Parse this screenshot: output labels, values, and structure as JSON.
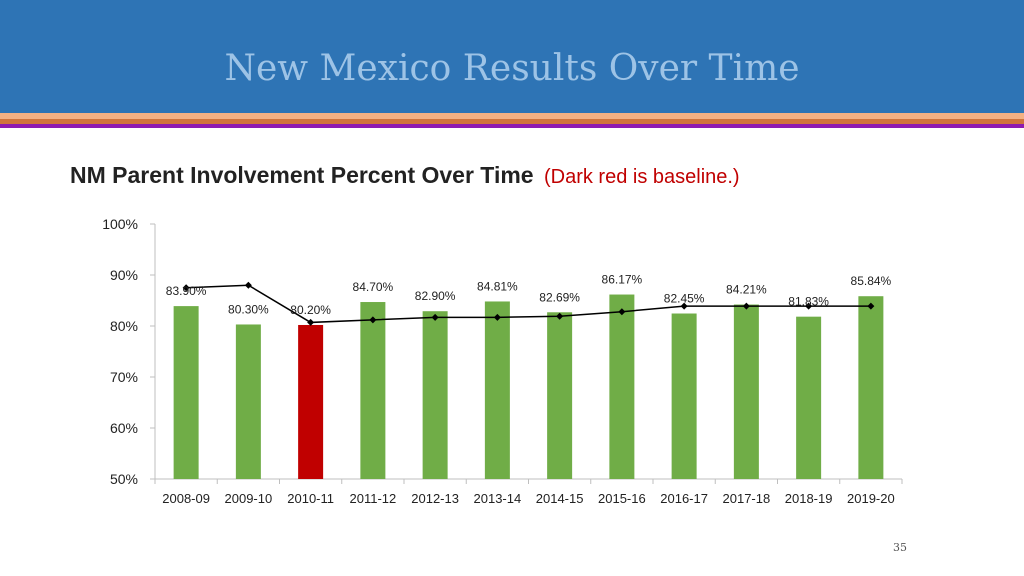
{
  "slide": {
    "title": "New Mexico Results Over Time",
    "page_number": "35"
  },
  "colors": {
    "header_bg": "#2e74b5",
    "title_text": "#9dc3e6",
    "bar_default": "#70ad47",
    "bar_baseline": "#c00000",
    "line": "#000000",
    "note_text": "#c00000"
  },
  "chart_data": {
    "type": "bar",
    "title": "NM Parent Involvement Percent Over Time",
    "subtitle": "(Dark red is baseline.)",
    "categories": [
      "2008-09",
      "2009-10",
      "2010-11",
      "2011-12",
      "2012-13",
      "2013-14",
      "2014-15",
      "2015-16",
      "2016-17",
      "2017-18",
      "2018-19",
      "2019-20"
    ],
    "series": [
      {
        "type": "bar",
        "values": [
          83.9,
          80.3,
          80.2,
          84.7,
          82.9,
          84.81,
          82.69,
          86.17,
          82.45,
          84.21,
          81.83,
          85.84
        ],
        "labels": [
          "83.90%",
          "80.30%",
          "80.20%",
          "84.70%",
          "82.90%",
          "84.81%",
          "82.69%",
          "86.17%",
          "82.45%",
          "84.21%",
          "81.83%",
          "85.84%"
        ],
        "baseline_index": 2
      },
      {
        "type": "line",
        "marker": "diamond",
        "values": [
          87.5,
          88.0,
          80.7,
          81.2,
          81.7,
          81.7,
          81.9,
          82.8,
          83.9,
          83.9,
          83.9,
          83.9
        ]
      }
    ],
    "ylim": [
      50,
      100
    ],
    "yticks": [
      50,
      60,
      70,
      80,
      90,
      100
    ],
    "ytick_labels": [
      "50%",
      "60%",
      "70%",
      "80%",
      "90%",
      "100%"
    ],
    "grid": false,
    "legend": "none"
  }
}
